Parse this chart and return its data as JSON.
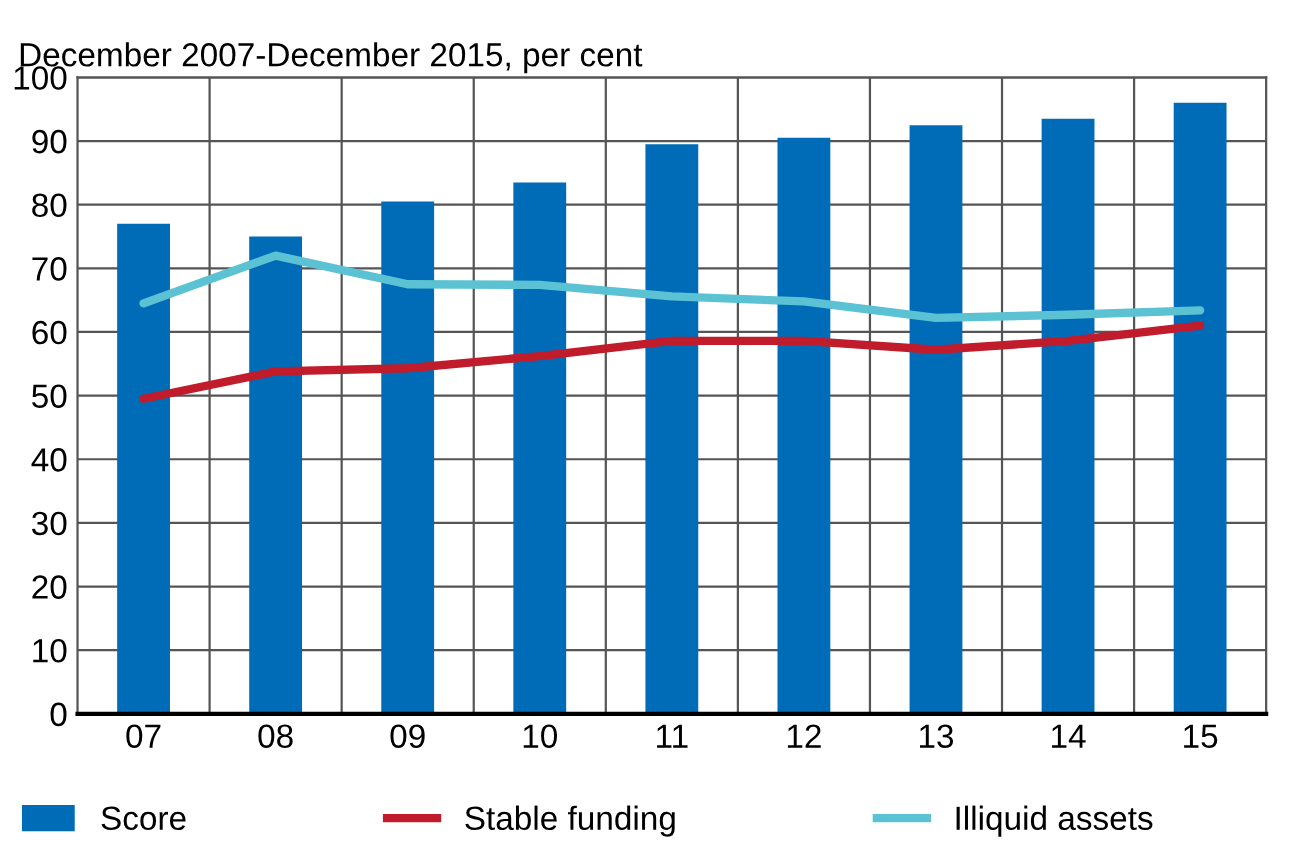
{
  "chart_data": {
    "type": "bar",
    "subtitle": "December 2007-December 2015, per cent",
    "categories": [
      "07",
      "08",
      "09",
      "10",
      "11",
      "12",
      "13",
      "14",
      "15"
    ],
    "series": [
      {
        "name": "Score",
        "color": "#006cb7",
        "values": [
          77,
          75,
          80.5,
          83.5,
          89.5,
          90.5,
          92.5,
          93.5,
          96
        ]
      },
      {
        "name": "Stable funding",
        "type": "line",
        "color": "#c01c2c",
        "values": [
          49.5,
          53.8,
          54.3,
          56.2,
          58.6,
          58.6,
          57.2,
          58.6,
          61
        ]
      },
      {
        "name": "Illiquid assets",
        "type": "line",
        "color": "#5bc2d3",
        "values": [
          64.5,
          72,
          67.5,
          67.4,
          65.6,
          64.8,
          62.2,
          62.7,
          63.4
        ]
      }
    ],
    "ylim": [
      0,
      100
    ],
    "yticks": [
      0,
      10,
      20,
      30,
      40,
      50,
      60,
      70,
      80,
      90,
      100
    ],
    "grid": true,
    "legend": "bottom"
  }
}
